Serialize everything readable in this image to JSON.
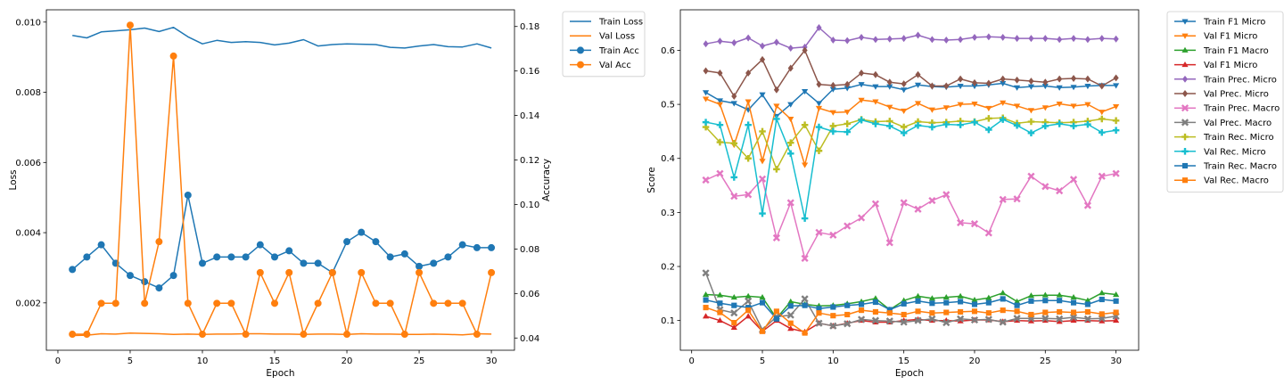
{
  "chart_data": [
    {
      "type": "line",
      "title": "",
      "xlabel": "Epoch",
      "ylabel": "Loss",
      "y2label": "Accuracy",
      "xlim": [
        -0.8,
        31.6
      ],
      "ylim": [
        0.00065,
        0.01035
      ],
      "y2lim": [
        0.0345,
        0.1875
      ],
      "xticks": [
        0,
        5,
        10,
        15,
        20,
        25,
        30
      ],
      "yticks": [
        0.002,
        0.004,
        0.006,
        0.008,
        0.01
      ],
      "ytick_labels": [
        "0.002",
        "0.004",
        "0.006",
        "0.008",
        "0.010"
      ],
      "y2ticks": [
        0.04,
        0.06,
        0.08,
        0.1,
        0.12,
        0.14,
        0.16,
        0.18
      ],
      "y2tick_labels": [
        "0.04",
        "0.06",
        "0.08",
        "0.10",
        "0.12",
        "0.14",
        "0.16",
        "0.18"
      ],
      "legend_position": "outside-top-right",
      "x": [
        1,
        2,
        3,
        4,
        5,
        6,
        7,
        8,
        9,
        10,
        11,
        12,
        13,
        14,
        15,
        16,
        17,
        18,
        19,
        20,
        21,
        22,
        23,
        24,
        25,
        26,
        27,
        28,
        29,
        30
      ],
      "series": [
        {
          "name": "Train Loss",
          "axis": "left",
          "color": "#1f77b4",
          "marker": "none",
          "values": [
            0.00962,
            0.00955,
            0.00972,
            0.00975,
            0.00978,
            0.00983,
            0.00973,
            0.00985,
            0.00958,
            0.00938,
            0.00948,
            0.00942,
            0.00944,
            0.00942,
            0.00935,
            0.0094,
            0.0095,
            0.00932,
            0.00936,
            0.00938,
            0.00937,
            0.00936,
            0.00928,
            0.00926,
            0.00932,
            0.00936,
            0.0093,
            0.00929,
            0.00938,
            0.00926
          ]
        },
        {
          "name": "Val Loss",
          "axis": "left",
          "color": "#ff7f0e",
          "marker": "none",
          "values": [
            0.00107,
            0.00108,
            0.00112,
            0.00111,
            0.00114,
            0.00113,
            0.00112,
            0.0011,
            0.00111,
            0.0011,
            0.00111,
            0.00111,
            0.00112,
            0.00112,
            0.00111,
            0.00111,
            0.0011,
            0.00111,
            0.00111,
            0.0011,
            0.00112,
            0.00111,
            0.00111,
            0.0011,
            0.0011,
            0.00111,
            0.0011,
            0.00109,
            0.00112,
            0.00111
          ]
        },
        {
          "name": "Train Acc",
          "axis": "right",
          "color": "#1f77b4",
          "marker": "circle",
          "values": [
            0.0708,
            0.0764,
            0.0819,
            0.0736,
            0.0681,
            0.0653,
            0.0625,
            0.0681,
            0.1042,
            0.0736,
            0.0764,
            0.0764,
            0.0764,
            0.0819,
            0.0764,
            0.0792,
            0.0736,
            0.0736,
            0.0694,
            0.0833,
            0.0875,
            0.0833,
            0.0764,
            0.0778,
            0.0722,
            0.0736,
            0.0764,
            0.0819,
            0.0806,
            0.0806
          ]
        },
        {
          "name": "Val Acc",
          "axis": "right",
          "color": "#ff7f0e",
          "marker": "circle",
          "values": [
            0.0417,
            0.0417,
            0.0556,
            0.0556,
            0.1806,
            0.0556,
            0.0833,
            0.1667,
            0.0556,
            0.0417,
            0.0556,
            0.0556,
            0.0417,
            0.0694,
            0.0556,
            0.0694,
            0.0417,
            0.0556,
            0.0694,
            0.0417,
            0.0694,
            0.0556,
            0.0556,
            0.0417,
            0.0694,
            0.0556,
            0.0556,
            0.0556,
            0.0417,
            0.0694
          ]
        }
      ]
    },
    {
      "type": "line",
      "title": "",
      "xlabel": "Epoch",
      "ylabel": "Score",
      "xlim": [
        -0.8,
        31.6
      ],
      "ylim": [
        0.045,
        0.675
      ],
      "xticks": [
        0,
        5,
        10,
        15,
        20,
        25,
        30
      ],
      "yticks": [
        0.1,
        0.2,
        0.3,
        0.4,
        0.5,
        0.6
      ],
      "ytick_labels": [
        "0.1",
        "0.2",
        "0.3",
        "0.4",
        "0.5",
        "0.6"
      ],
      "legend_position": "outside-top-right",
      "x": [
        1,
        2,
        3,
        4,
        5,
        6,
        7,
        8,
        9,
        10,
        11,
        12,
        13,
        14,
        15,
        16,
        17,
        18,
        19,
        20,
        21,
        22,
        23,
        24,
        25,
        26,
        27,
        28,
        29,
        30
      ],
      "series": [
        {
          "name": "Train F1 Micro",
          "color": "#1f77b4",
          "marker": "tri-down",
          "values": [
            0.522,
            0.507,
            0.502,
            0.49,
            0.518,
            0.478,
            0.5,
            0.524,
            0.502,
            0.528,
            0.53,
            0.537,
            0.533,
            0.533,
            0.527,
            0.536,
            0.533,
            0.532,
            0.534,
            0.534,
            0.536,
            0.539,
            0.531,
            0.533,
            0.534,
            0.531,
            0.532,
            0.534,
            0.535,
            0.535
          ]
        },
        {
          "name": "Val F1 Micro",
          "color": "#ff7f0e",
          "marker": "tri-down",
          "values": [
            0.51,
            0.5,
            0.425,
            0.505,
            0.395,
            0.497,
            0.473,
            0.388,
            0.493,
            0.485,
            0.486,
            0.508,
            0.505,
            0.495,
            0.488,
            0.502,
            0.49,
            0.494,
            0.5,
            0.501,
            0.493,
            0.503,
            0.497,
            0.489,
            0.494,
            0.501,
            0.497,
            0.5,
            0.486,
            0.496
          ]
        },
        {
          "name": "Train F1 Macro",
          "color": "#2ca02c",
          "marker": "tri-up",
          "values": [
            0.148,
            0.147,
            0.143,
            0.145,
            0.143,
            0.104,
            0.135,
            0.13,
            0.127,
            0.128,
            0.131,
            0.135,
            0.141,
            0.12,
            0.137,
            0.145,
            0.141,
            0.143,
            0.145,
            0.138,
            0.142,
            0.151,
            0.135,
            0.146,
            0.147,
            0.147,
            0.143,
            0.137,
            0.151,
            0.148
          ]
        },
        {
          "name": "Val F1 Micro",
          "color": "#d62728",
          "marker": "tri-up",
          "values": [
            0.108,
            0.1,
            0.087,
            0.108,
            0.08,
            0.1,
            0.085,
            0.079,
            0.095,
            0.09,
            0.095,
            0.1,
            0.097,
            0.097,
            0.1,
            0.102,
            0.1,
            0.1,
            0.099,
            0.101,
            0.101,
            0.098,
            0.1,
            0.099,
            0.1,
            0.098,
            0.1,
            0.1,
            0.099,
            0.1
          ]
        },
        {
          "name": "Train Prec. Micro",
          "color": "#9467bd",
          "marker": "diamond",
          "values": [
            0.612,
            0.617,
            0.614,
            0.623,
            0.608,
            0.615,
            0.604,
            0.606,
            0.642,
            0.619,
            0.618,
            0.624,
            0.62,
            0.621,
            0.622,
            0.628,
            0.62,
            0.619,
            0.62,
            0.624,
            0.625,
            0.624,
            0.622,
            0.622,
            0.622,
            0.62,
            0.622,
            0.62,
            0.622,
            0.621
          ]
        },
        {
          "name": "Val Prec. Micro",
          "color": "#8c564b",
          "marker": "diamond",
          "values": [
            0.562,
            0.558,
            0.515,
            0.558,
            0.583,
            0.527,
            0.567,
            0.6,
            0.537,
            0.535,
            0.537,
            0.558,
            0.555,
            0.541,
            0.538,
            0.555,
            0.534,
            0.534,
            0.547,
            0.54,
            0.539,
            0.547,
            0.545,
            0.543,
            0.541,
            0.547,
            0.548,
            0.547,
            0.534,
            0.549
          ]
        },
        {
          "name": "Train Prec. Macro",
          "color": "#e377c2",
          "marker": "x",
          "values": [
            0.36,
            0.372,
            0.33,
            0.333,
            0.362,
            0.253,
            0.318,
            0.215,
            0.263,
            0.258,
            0.275,
            0.29,
            0.316,
            0.244,
            0.318,
            0.306,
            0.322,
            0.333,
            0.281,
            0.279,
            0.262,
            0.324,
            0.325,
            0.367,
            0.348,
            0.34,
            0.361,
            0.313,
            0.367,
            0.372
          ]
        },
        {
          "name": "Val Prec. Macro",
          "color": "#7f7f7f",
          "marker": "x",
          "values": [
            0.188,
            0.12,
            0.114,
            0.136,
            0.083,
            0.107,
            0.11,
            0.14,
            0.095,
            0.09,
            0.094,
            0.102,
            0.1,
            0.099,
            0.097,
            0.1,
            0.103,
            0.096,
            0.103,
            0.101,
            0.102,
            0.097,
            0.104,
            0.104,
            0.104,
            0.103,
            0.106,
            0.103,
            0.104,
            0.108
          ]
        },
        {
          "name": "Train Rec. Micro",
          "color": "#bcbd22",
          "marker": "plus",
          "values": [
            0.458,
            0.43,
            0.428,
            0.4,
            0.45,
            0.38,
            0.429,
            0.462,
            0.414,
            0.46,
            0.464,
            0.472,
            0.468,
            0.469,
            0.458,
            0.468,
            0.466,
            0.467,
            0.469,
            0.468,
            0.474,
            0.475,
            0.465,
            0.468,
            0.467,
            0.466,
            0.467,
            0.469,
            0.473,
            0.47
          ]
        },
        {
          "name": "Val Rec. Micro",
          "color": "#17becf",
          "marker": "plus",
          "values": [
            0.467,
            0.462,
            0.365,
            0.462,
            0.298,
            0.473,
            0.409,
            0.289,
            0.458,
            0.45,
            0.449,
            0.471,
            0.464,
            0.46,
            0.447,
            0.461,
            0.458,
            0.463,
            0.462,
            0.467,
            0.453,
            0.472,
            0.461,
            0.447,
            0.46,
            0.464,
            0.46,
            0.463,
            0.448,
            0.452
          ]
        },
        {
          "name": "Train Rec. Macro",
          "color": "#1f77b4",
          "marker": "square",
          "values": [
            0.138,
            0.132,
            0.128,
            0.124,
            0.133,
            0.103,
            0.127,
            0.128,
            0.122,
            0.125,
            0.128,
            0.13,
            0.134,
            0.12,
            0.131,
            0.136,
            0.132,
            0.133,
            0.135,
            0.13,
            0.133,
            0.14,
            0.128,
            0.136,
            0.137,
            0.137,
            0.133,
            0.13,
            0.139,
            0.136
          ]
        },
        {
          "name": "Val Rec. Macro",
          "color": "#ff7f0e",
          "marker": "square",
          "values": [
            0.124,
            0.115,
            0.096,
            0.119,
            0.08,
            0.117,
            0.095,
            0.077,
            0.114,
            0.109,
            0.111,
            0.119,
            0.116,
            0.114,
            0.111,
            0.117,
            0.114,
            0.115,
            0.116,
            0.117,
            0.114,
            0.119,
            0.117,
            0.111,
            0.115,
            0.116,
            0.115,
            0.116,
            0.112,
            0.115
          ]
        }
      ]
    }
  ]
}
